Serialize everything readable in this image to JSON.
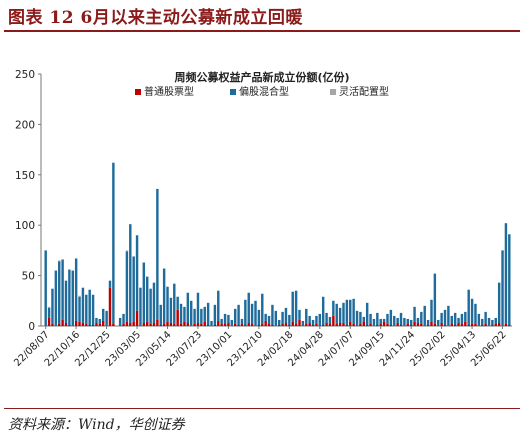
{
  "figure": {
    "title": "图表 12   6月以来主动公募新成立回暖",
    "source": "资料来源：Wind，华创证券"
  },
  "colors": {
    "title_red": "#8b1a1a",
    "common_stock": "#c00000",
    "hybrid": "#1f6c9c",
    "flexible": "#a6a6a6"
  },
  "chart_data": {
    "type": "bar",
    "stacked": true,
    "title": "周频公募权益产品新成立份额(亿份)",
    "ylim": [
      0,
      250
    ],
    "yticks": [
      "0",
      "50",
      "100",
      "150",
      "200",
      "250"
    ],
    "grid": false,
    "legend_position": "top",
    "xtick_labels": [
      "22/08/07",
      "22/10/16",
      "22/12/25",
      "23/03/05",
      "23/05/14",
      "23/07/23",
      "23/10/01",
      "23/12/10",
      "24/02/18",
      "24/04/28",
      "24/07/07",
      "24/09/15",
      "24/11/24",
      "25/02/02",
      "25/04/13",
      "25/06/22"
    ],
    "series": [
      {
        "name": "普通股票型",
        "color": "#c00000",
        "values": [
          0,
          8,
          2,
          0,
          2,
          6,
          3,
          1,
          0,
          5,
          4,
          3,
          2,
          1,
          1,
          3,
          2,
          5,
          0,
          38,
          2,
          0,
          0,
          2,
          4,
          3,
          4,
          15,
          0,
          3,
          4,
          2,
          3,
          6,
          1,
          2,
          4,
          3,
          2,
          16,
          2,
          4,
          3,
          0,
          2,
          3,
          2,
          4,
          1,
          0,
          1,
          5,
          2,
          2,
          3,
          0,
          2,
          1,
          2,
          1,
          3,
          2,
          0,
          1,
          2,
          5,
          2,
          1,
          0,
          1,
          2,
          3,
          1,
          4,
          2,
          6,
          0,
          2,
          3,
          1,
          2,
          0,
          1,
          3,
          2,
          10,
          2,
          3,
          3,
          1,
          4,
          2,
          0,
          2,
          4,
          1,
          2,
          0,
          1,
          2,
          4,
          2,
          1,
          0,
          3,
          1,
          0,
          2,
          1,
          4,
          3,
          2,
          0,
          1,
          4,
          2,
          0,
          3,
          1,
          0,
          2,
          1,
          3,
          2,
          4,
          1,
          2,
          2,
          0,
          1,
          2,
          0,
          1,
          2,
          3,
          0,
          2,
          1
        ]
      },
      {
        "name": "偏股混合型",
        "color": "#1f6c9c",
        "values": [
          75,
          10,
          35,
          55,
          62,
          60,
          42,
          55,
          55,
          62,
          25,
          35,
          29,
          35,
          30,
          5,
          5,
          12,
          15,
          7,
          160,
          0,
          8,
          10,
          70,
          98,
          65,
          75,
          38,
          60,
          45,
          35,
          40,
          130,
          20,
          55,
          35,
          25,
          40,
          13,
          20,
          15,
          30,
          25,
          15,
          30,
          15,
          15,
          22,
          5,
          20,
          30,
          5,
          10,
          8,
          6,
          15,
          20,
          5,
          25,
          30,
          20,
          25,
          15,
          30,
          7,
          8,
          20,
          15,
          5,
          12,
          15,
          10,
          30,
          33,
          10,
          5,
          15,
          7,
          5,
          8,
          12,
          28,
          10,
          7,
          15,
          20,
          15,
          20,
          25,
          22,
          25,
          15,
          12,
          5,
          22,
          10,
          7,
          12,
          5,
          3,
          10,
          15,
          10,
          5,
          12,
          8,
          5,
          5,
          15,
          5,
          12,
          20,
          5,
          22,
          50,
          6,
          10,
          15,
          20,
          8,
          12,
          5,
          10,
          10,
          35,
          25,
          20,
          12,
          6,
          12,
          8,
          5,
          6,
          40,
          75,
          100,
          90
        ]
      },
      {
        "name": "灵活配置型",
        "color": "#a6a6a6",
        "values": [
          0,
          1,
          0,
          0,
          1,
          0,
          0,
          0,
          0,
          0,
          1,
          0,
          0,
          0,
          0,
          0,
          0,
          0,
          0,
          0,
          0,
          0,
          0,
          0,
          1,
          0,
          0,
          0,
          0,
          0,
          0,
          0,
          0,
          0,
          0,
          0,
          0,
          0,
          0,
          0,
          0,
          0,
          0,
          0,
          0,
          0,
          0,
          0,
          0,
          0,
          0,
          0,
          0,
          0,
          0,
          0,
          0,
          0,
          0,
          0,
          0,
          0,
          0,
          0,
          0,
          0,
          0,
          0,
          0,
          0,
          0,
          0,
          0,
          0,
          0,
          0,
          0,
          0,
          0,
          0,
          0,
          0,
          0,
          0,
          0,
          0,
          0,
          0,
          0,
          0,
          0,
          0,
          0,
          0,
          0,
          0,
          0,
          0,
          0,
          0,
          0,
          0,
          0,
          0,
          0,
          0,
          0,
          0,
          0,
          0,
          0,
          0,
          0,
          0,
          0,
          0,
          0,
          0,
          0,
          0,
          0,
          0,
          0,
          0,
          0,
          0,
          0,
          0,
          0,
          0,
          0,
          0,
          0,
          0,
          0,
          0,
          0,
          0
        ]
      }
    ]
  }
}
